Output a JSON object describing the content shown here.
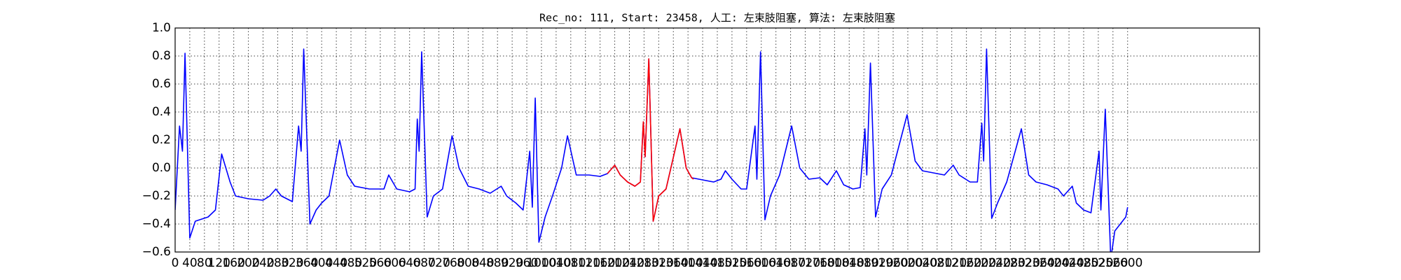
{
  "chart_data": {
    "type": "line",
    "title": "Rec_no: 111, Start: 23458, 人工: 左束肢阻塞, 算法: 左束肢阻塞",
    "xlim": [
      0,
      2960
    ],
    "ylim": [
      -0.6,
      1.0
    ],
    "xticks": [
      0,
      40,
      80,
      120,
      160,
      200,
      240,
      280,
      320,
      360,
      400,
      440,
      480,
      520,
      560,
      600,
      640,
      680,
      720,
      760,
      800,
      840,
      880,
      920,
      960,
      1000,
      1040,
      1080,
      1120,
      1160,
      1200,
      1240,
      1280,
      1320,
      1360,
      1400,
      1440,
      1480,
      1520,
      1560,
      1600,
      1640,
      1680,
      1720,
      1760,
      1800,
      1840,
      1880,
      1920,
      1960,
      2000,
      2040,
      2080,
      2120,
      2160,
      2200,
      2240,
      2280,
      2320,
      2360,
      2400,
      2440,
      2480,
      2520,
      2560,
      2600
    ],
    "yticks": [
      {
        "value": -0.6,
        "label": "−0.6"
      },
      {
        "value": -0.4,
        "label": "−0.4"
      },
      {
        "value": -0.2,
        "label": "−0.2"
      },
      {
        "value": 0,
        "label": "0.0"
      },
      {
        "value": 0.2,
        "label": "0.2"
      },
      {
        "value": 0.4,
        "label": "0.4"
      },
      {
        "value": 0.6,
        "label": "0.6"
      },
      {
        "value": 0.8,
        "label": "0.8"
      },
      {
        "value": 1,
        "label": "1.0"
      }
    ],
    "grid": true,
    "series": [
      {
        "color": "#0000ff",
        "x": [
          0,
          12,
          20,
          27,
          40,
          55,
          90,
          110,
          127,
          150,
          165,
          200,
          240,
          258,
          275,
          290,
          320,
          337,
          344,
          351,
          368,
          385,
          400,
          420,
          449,
          470,
          490,
          530,
          570,
          583,
          605,
          640,
          655,
          661,
          666,
          673,
          688,
          705,
          730,
          756,
          775,
          800,
          830,
          860,
          890,
          905,
          930,
          950,
          968,
          975,
          983,
          993,
          1010,
          1030,
          1055,
          1071,
          1095,
          1130,
          1160,
          1180,
          1200,
          1215,
          1235,
          1255,
          1270,
          1278,
          1283,
          1293,
          1305,
          1320,
          1340,
          1378,
          1395,
          1410,
          1430,
          1470,
          1490,
          1502,
          1520,
          1545,
          1560,
          1583,
          1588,
          1598,
          1610,
          1625,
          1650,
          1683,
          1705,
          1730,
          1760,
          1780,
          1805,
          1825,
          1850,
          1870,
          1883,
          1888,
          1898,
          1912,
          1930,
          1955,
          1998,
          2020,
          2040,
          2080,
          2100,
          2124,
          2140,
          2170,
          2190,
          2202,
          2207,
          2215,
          2229,
          2245,
          2270,
          2310,
          2330,
          2350,
          2380,
          2410,
          2425,
          2449,
          2460,
          2480,
          2500,
          2522,
          2527,
          2539,
          2554,
          2565,
          2580,
          2595,
          2600
        ],
        "values": [
          -0.3,
          0.3,
          0.12,
          0.82,
          -0.5,
          -0.38,
          -0.35,
          -0.3,
          0.1,
          -0.1,
          -0.2,
          -0.22,
          -0.23,
          -0.2,
          -0.15,
          -0.2,
          -0.24,
          0.3,
          0.12,
          0.85,
          -0.4,
          -0.3,
          -0.25,
          -0.2,
          0.2,
          -0.05,
          -0.13,
          -0.15,
          -0.15,
          -0.05,
          -0.15,
          -0.17,
          -0.15,
          0.35,
          0.12,
          0.83,
          -0.35,
          -0.2,
          -0.15,
          0.23,
          0.0,
          -0.13,
          -0.15,
          -0.18,
          -0.13,
          -0.2,
          -0.25,
          -0.3,
          0.12,
          -0.28,
          0.5,
          -0.53,
          -0.35,
          -0.2,
          0.0,
          0.23,
          -0.05,
          -0.05,
          -0.06,
          -0.04,
          0.02,
          -0.05,
          -0.1,
          -0.13,
          -0.1,
          0.33,
          0.08,
          0.78,
          -0.38,
          -0.2,
          -0.15,
          0.28,
          0.0,
          -0.07,
          -0.08,
          -0.1,
          -0.08,
          -0.02,
          -0.08,
          -0.15,
          -0.15,
          0.3,
          -0.08,
          0.83,
          -0.37,
          -0.2,
          -0.05,
          0.3,
          0.0,
          -0.08,
          -0.07,
          -0.12,
          -0.02,
          -0.12,
          -0.15,
          -0.14,
          0.28,
          -0.05,
          0.75,
          -0.35,
          -0.15,
          -0.05,
          0.38,
          0.05,
          -0.02,
          -0.04,
          -0.05,
          0.02,
          -0.05,
          -0.1,
          -0.1,
          0.32,
          0.05,
          0.85,
          -0.36,
          -0.25,
          -0.1,
          0.28,
          -0.05,
          -0.1,
          -0.12,
          -0.15,
          -0.2,
          -0.13,
          -0.25,
          -0.3,
          -0.32,
          0.12,
          -0.3,
          0.42,
          -0.65,
          -0.45,
          -0.4,
          -0.35,
          -0.28
        ]
      },
      {
        "color": "#ff0000",
        "x": [
          1180,
          1200,
          1215,
          1235,
          1255,
          1270,
          1278,
          1283,
          1293,
          1305,
          1320,
          1340,
          1378,
          1395,
          1410,
          1415
        ],
        "values": [
          -0.04,
          0.02,
          -0.05,
          -0.1,
          -0.13,
          -0.1,
          0.33,
          0.08,
          0.78,
          -0.38,
          -0.2,
          -0.15,
          0.28,
          0.0,
          -0.07,
          -0.08
        ]
      }
    ]
  }
}
